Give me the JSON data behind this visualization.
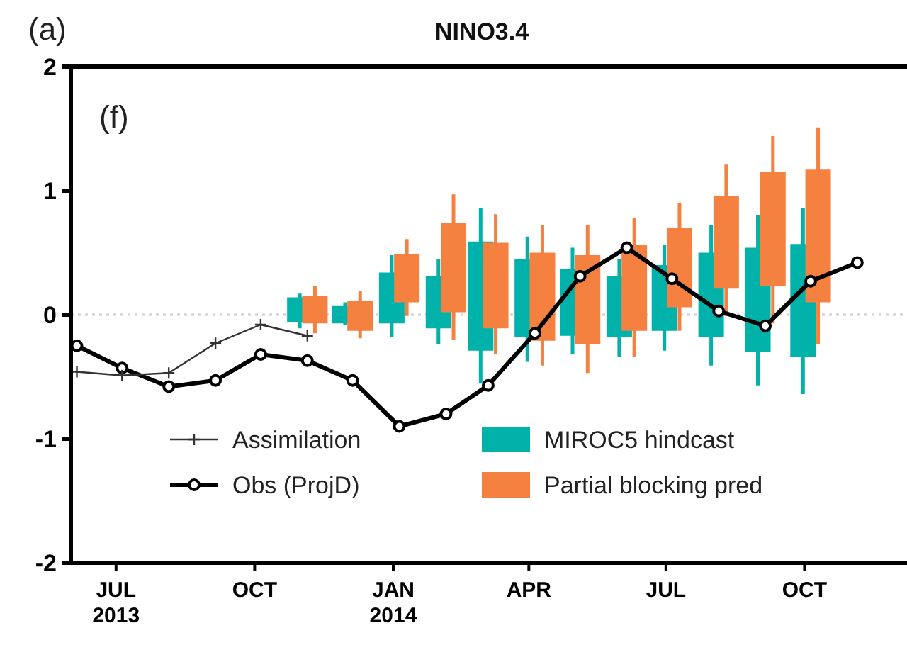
{
  "chart_data": {
    "type": "candlestick",
    "title": "NINO3.4",
    "annotations": [
      "(a)",
      "(f)"
    ],
    "xlim": [
      "2013-06-01",
      "2014-12-08"
    ],
    "xticks": [
      {
        "value": "2013-07-01",
        "label": "JUL\n2013"
      },
      {
        "value": "2013-10-01",
        "label": "OCT"
      },
      {
        "value": "2014-01-01",
        "label": "JAN\n2014"
      },
      {
        "value": "2014-04-01",
        "label": "APR"
      },
      {
        "value": "2014-07-01",
        "label": "JUL"
      },
      {
        "value": "2014-10-01",
        "label": "OCT"
      }
    ],
    "ylim": [
      -2,
      2
    ],
    "yticks": [
      -2,
      -1,
      0,
      1,
      2
    ],
    "grid": false,
    "legend": "bottom",
    "ref_lines": [
      {
        "axis": "y",
        "value": 0,
        "color": "#cccccc",
        "line_style": "dotted"
      }
    ],
    "series": [
      {
        "name": "Assimilation",
        "type": "line",
        "color": "#333333",
        "marker": "cross",
        "line_style": "solid",
        "x": [
          "2013-06-05",
          "2013-07-05",
          "2013-08-05",
          "2013-09-05",
          "2013-10-05",
          "2013-11-05"
        ],
        "values": [
          -0.46,
          -0.49,
          -0.47,
          -0.23,
          -0.08,
          -0.17
        ]
      },
      {
        "name": "Obs (ProjD)",
        "type": "line",
        "color": "#000000",
        "marker": "circle",
        "line_style": "solid",
        "x": [
          "2013-06-05",
          "2013-07-05",
          "2013-08-05",
          "2013-09-05",
          "2013-10-05",
          "2013-11-05",
          "2013-12-05",
          "2014-01-05",
          "2014-02-05",
          "2014-03-05",
          "2014-04-05",
          "2014-05-05",
          "2014-06-05",
          "2014-07-05",
          "2014-08-05",
          "2014-09-05",
          "2014-10-05",
          "2014-11-05"
        ],
        "values": [
          -0.25,
          -0.43,
          -0.58,
          -0.53,
          -0.32,
          -0.37,
          -0.53,
          -0.9,
          -0.8,
          -0.57,
          -0.15,
          0.31,
          0.54,
          0.29,
          0.03,
          -0.09,
          0.27,
          0.42
        ]
      },
      {
        "name": "MIROC5 hindcast",
        "color": "#00b2aa",
        "x": [
          "2013-10-31",
          "2013-11-30",
          "2013-12-31",
          "2014-01-31",
          "2014-02-28",
          "2014-03-31",
          "2014-04-30",
          "2014-05-31",
          "2014-06-30",
          "2014-07-31",
          "2014-08-31",
          "2014-09-30"
        ],
        "ohlc": [
          [
            -0.06,
            0.17,
            -0.11,
            0.14
          ],
          [
            -0.07,
            0.1,
            -0.08,
            0.07
          ],
          [
            -0.07,
            0.48,
            -0.18,
            0.34
          ],
          [
            -0.11,
            0.45,
            -0.24,
            0.31
          ],
          [
            -0.29,
            0.86,
            -0.55,
            0.59
          ],
          [
            -0.18,
            0.63,
            -0.38,
            0.45
          ],
          [
            -0.17,
            0.54,
            -0.32,
            0.37
          ],
          [
            -0.18,
            0.45,
            -0.34,
            0.31
          ],
          [
            -0.13,
            0.56,
            -0.29,
            0.4
          ],
          [
            -0.18,
            0.72,
            -0.41,
            0.5
          ],
          [
            -0.3,
            0.8,
            -0.57,
            0.54
          ],
          [
            -0.34,
            0.86,
            -0.64,
            0.57
          ]
        ]
      },
      {
        "name": "Partial blocking pred",
        "color": "#f58140",
        "x": [
          "2013-11-10",
          "2013-12-10",
          "2014-01-10",
          "2014-02-10",
          "2014-03-10",
          "2014-04-10",
          "2014-05-10",
          "2014-06-10",
          "2014-07-10",
          "2014-08-10",
          "2014-09-10",
          "2014-10-10"
        ],
        "ohlc": [
          [
            -0.07,
            0.23,
            -0.15,
            0.15
          ],
          [
            -0.13,
            0.19,
            -0.19,
            0.11
          ],
          [
            0.1,
            0.61,
            -0.01,
            0.49
          ],
          [
            0.02,
            0.97,
            -0.2,
            0.74
          ],
          [
            -0.11,
            0.81,
            -0.32,
            0.58
          ],
          [
            -0.21,
            0.72,
            -0.41,
            0.5
          ],
          [
            -0.24,
            0.72,
            -0.47,
            0.48
          ],
          [
            -0.13,
            0.78,
            -0.34,
            0.56
          ],
          [
            0.06,
            0.9,
            -0.13,
            0.7
          ],
          [
            0.21,
            1.21,
            -0.01,
            0.96
          ],
          [
            0.23,
            1.44,
            -0.07,
            1.15
          ],
          [
            0.1,
            1.51,
            -0.24,
            1.17
          ]
        ]
      }
    ]
  }
}
